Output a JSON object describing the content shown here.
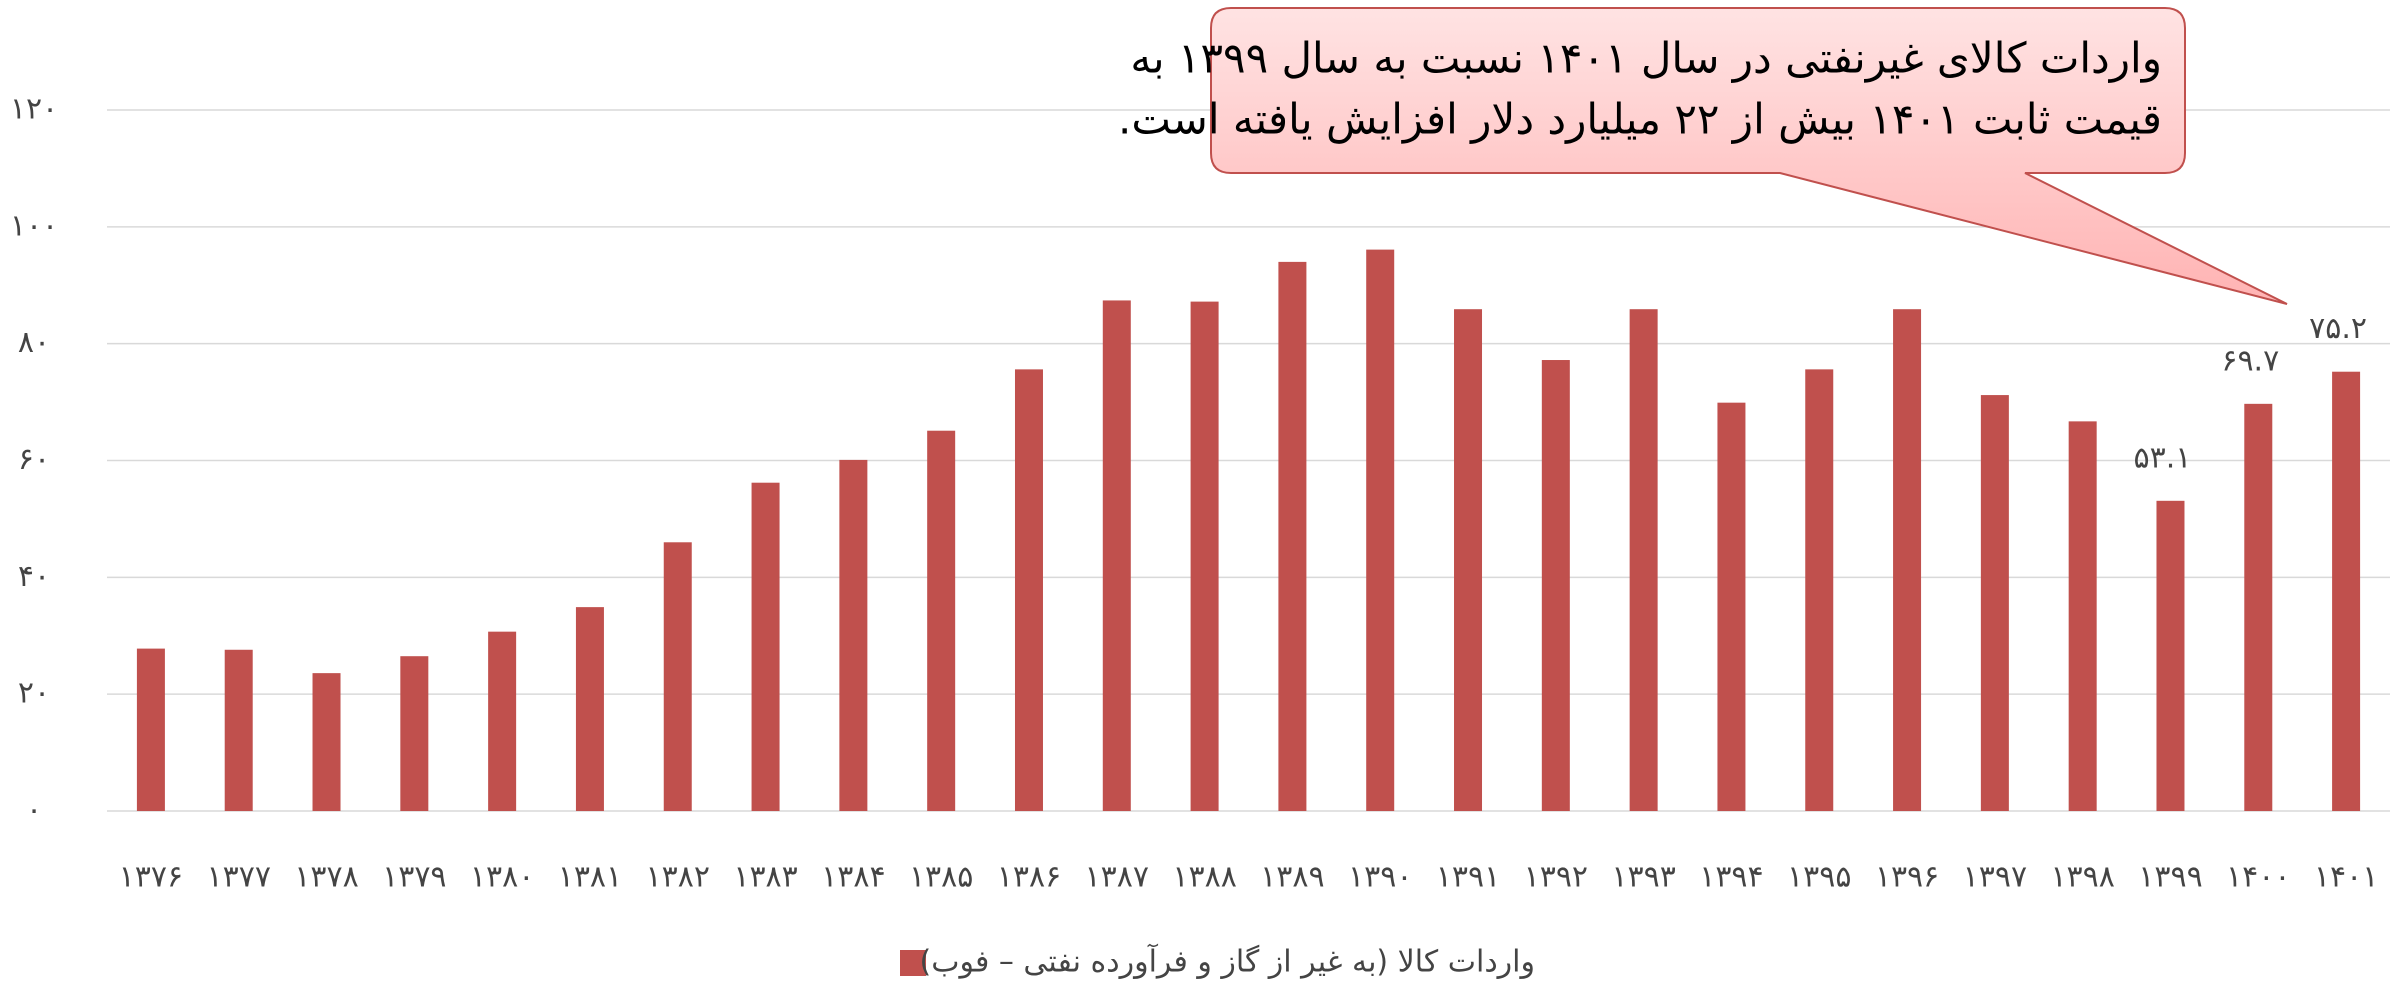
{
  "chart_data": {
    "type": "bar",
    "categories": [
      "۱۳۷۶",
      "۱۳۷۷",
      "۱۳۷۸",
      "۱۳۷۹",
      "۱۳۸۰",
      "۱۳۸۱",
      "۱۳۸۲",
      "۱۳۸۳",
      "۱۳۸۴",
      "۱۳۸۵",
      "۱۳۸۶",
      "۱۳۸۷",
      "۱۳۸۸",
      "۱۳۸۹",
      "۱۳۹۰",
      "۱۳۹۱",
      "۱۳۹۲",
      "۱۳۹۳",
      "۱۳۹۴",
      "۱۳۹۵",
      "۱۳۹۶",
      "۱۳۹۷",
      "۱۳۹۸",
      "۱۳۹۹",
      "۱۴۰۰",
      "۱۴۰۱"
    ],
    "series": [
      {
        "name": "واردات کالا (به غیر از گاز و فرآورده نفتی – فوب)",
        "color": "#c0504d",
        "values": [
          27.8,
          27.6,
          23.6,
          26.5,
          30.7,
          34.9,
          46.0,
          56.2,
          60.1,
          65.1,
          75.6,
          87.4,
          87.2,
          94.0,
          96.1,
          85.9,
          77.2,
          85.9,
          69.9,
          75.6,
          85.9,
          71.2,
          66.7,
          53.1,
          69.7,
          75.2
        ],
        "value_labels": [
          null,
          null,
          null,
          null,
          null,
          null,
          null,
          null,
          null,
          null,
          null,
          null,
          null,
          null,
          null,
          null,
          null,
          null,
          null,
          null,
          null,
          null,
          null,
          "۵۳.۱",
          "۶۹.۷",
          "۷۵.۲"
        ]
      }
    ],
    "ylim": [
      0,
      120
    ],
    "yticks": [
      {
        "value": 0,
        "label": "۰"
      },
      {
        "value": 20,
        "label": "۲۰"
      },
      {
        "value": 40,
        "label": "۴۰"
      },
      {
        "value": 60,
        "label": "۶۰"
      },
      {
        "value": 80,
        "label": "۸۰"
      },
      {
        "value": 100,
        "label": "۱۰۰"
      },
      {
        "value": 120,
        "label": "۱۲۰"
      }
    ],
    "grid": true,
    "annotation": [
      "واردات کالای غیرنفتی در سال ۱۴۰۱ نسبت به سال ۱۳۹۹ به",
      "قیمت ثابت ۱۴۰۱ بیش از ۲۲ میلیارد دلار افزایش یافته است."
    ]
  }
}
